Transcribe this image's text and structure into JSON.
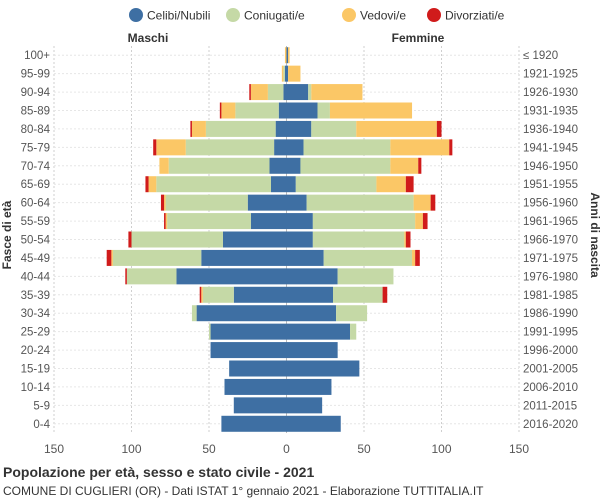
{
  "chart_data": {
    "type": "bar",
    "orientation": "horizontal-population-pyramid",
    "title": "Popolazione per età, sesso e stato civile - 2021",
    "subtitle": "COMUNE DI CUGLIERI (OR) - Dati ISTAT 1° gennaio 2021 - Elaborazione TUTTITALIA.IT",
    "left_label": "Maschi",
    "right_label": "Femmine",
    "ylabel_left": "Fasce di età",
    "ylabel_right": "Anni di nascita",
    "xlim": [
      -150,
      150
    ],
    "xticks": [
      -150,
      -100,
      -50,
      0,
      50,
      100,
      150
    ],
    "xtick_labels": [
      "150",
      "100",
      "50",
      "0",
      "50",
      "100",
      "150"
    ],
    "legend": [
      {
        "name": "Celibi/Nubili",
        "color": "#3e6fa3"
      },
      {
        "name": "Coniugati/e",
        "color": "#c5d9a6"
      },
      {
        "name": "Vedovi/e",
        "color": "#fbc766"
      },
      {
        "name": "Divorziati/e",
        "color": "#d01b1b"
      }
    ],
    "age_groups": [
      "100+",
      "95-99",
      "90-94",
      "85-89",
      "80-84",
      "75-79",
      "70-74",
      "65-69",
      "60-64",
      "55-59",
      "50-54",
      "45-49",
      "40-44",
      "35-39",
      "30-34",
      "25-29",
      "20-24",
      "15-19",
      "10-14",
      "5-9",
      "0-4"
    ],
    "birth_years": [
      "≤ 1920",
      "1921-1925",
      "1926-1930",
      "1931-1935",
      "1936-1940",
      "1941-1945",
      "1946-1950",
      "1951-1955",
      "1956-1960",
      "1961-1965",
      "1966-1970",
      "1971-1975",
      "1976-1980",
      "1981-1985",
      "1986-1990",
      "1991-1995",
      "1996-2000",
      "2001-2005",
      "2006-2010",
      "2011-2015",
      "2016-2020"
    ],
    "males": {
      "celibi": [
        0,
        1,
        2,
        5,
        7,
        8,
        11,
        10,
        25,
        23,
        41,
        55,
        71,
        34,
        58,
        49,
        49,
        37,
        40,
        34,
        42
      ],
      "coniugati": [
        0,
        1,
        10,
        28,
        45,
        57,
        65,
        74,
        53,
        54,
        59,
        57,
        32,
        20,
        3,
        1,
        0,
        0,
        0,
        0,
        0
      ],
      "vedovi": [
        1,
        1,
        11,
        9,
        9,
        19,
        6,
        5,
        1,
        1,
        0,
        1,
        0,
        1,
        0,
        0,
        0,
        0,
        0,
        0,
        0
      ],
      "divorziati": [
        0,
        0,
        1,
        1,
        1,
        2,
        0,
        2,
        2,
        1,
        2,
        3,
        1,
        1,
        0,
        0,
        0,
        0,
        0,
        0,
        0
      ]
    },
    "females": {
      "nubili": [
        1,
        1,
        14,
        20,
        16,
        11,
        9,
        6,
        13,
        17,
        17,
        24,
        33,
        30,
        32,
        41,
        33,
        47,
        29,
        23,
        35
      ],
      "coniugate": [
        0,
        0,
        2,
        8,
        29,
        56,
        58,
        52,
        69,
        66,
        59,
        57,
        36,
        32,
        20,
        4,
        0,
        0,
        0,
        0,
        0
      ],
      "vedove": [
        1,
        8,
        33,
        53,
        52,
        38,
        18,
        19,
        11,
        5,
        1,
        2,
        0,
        0,
        0,
        0,
        0,
        0,
        0,
        0,
        0
      ],
      "divorziate": [
        0,
        0,
        0,
        0,
        3,
        2,
        2,
        5,
        3,
        3,
        3,
        3,
        0,
        3,
        0,
        0,
        0,
        0,
        0,
        0,
        0
      ]
    }
  }
}
